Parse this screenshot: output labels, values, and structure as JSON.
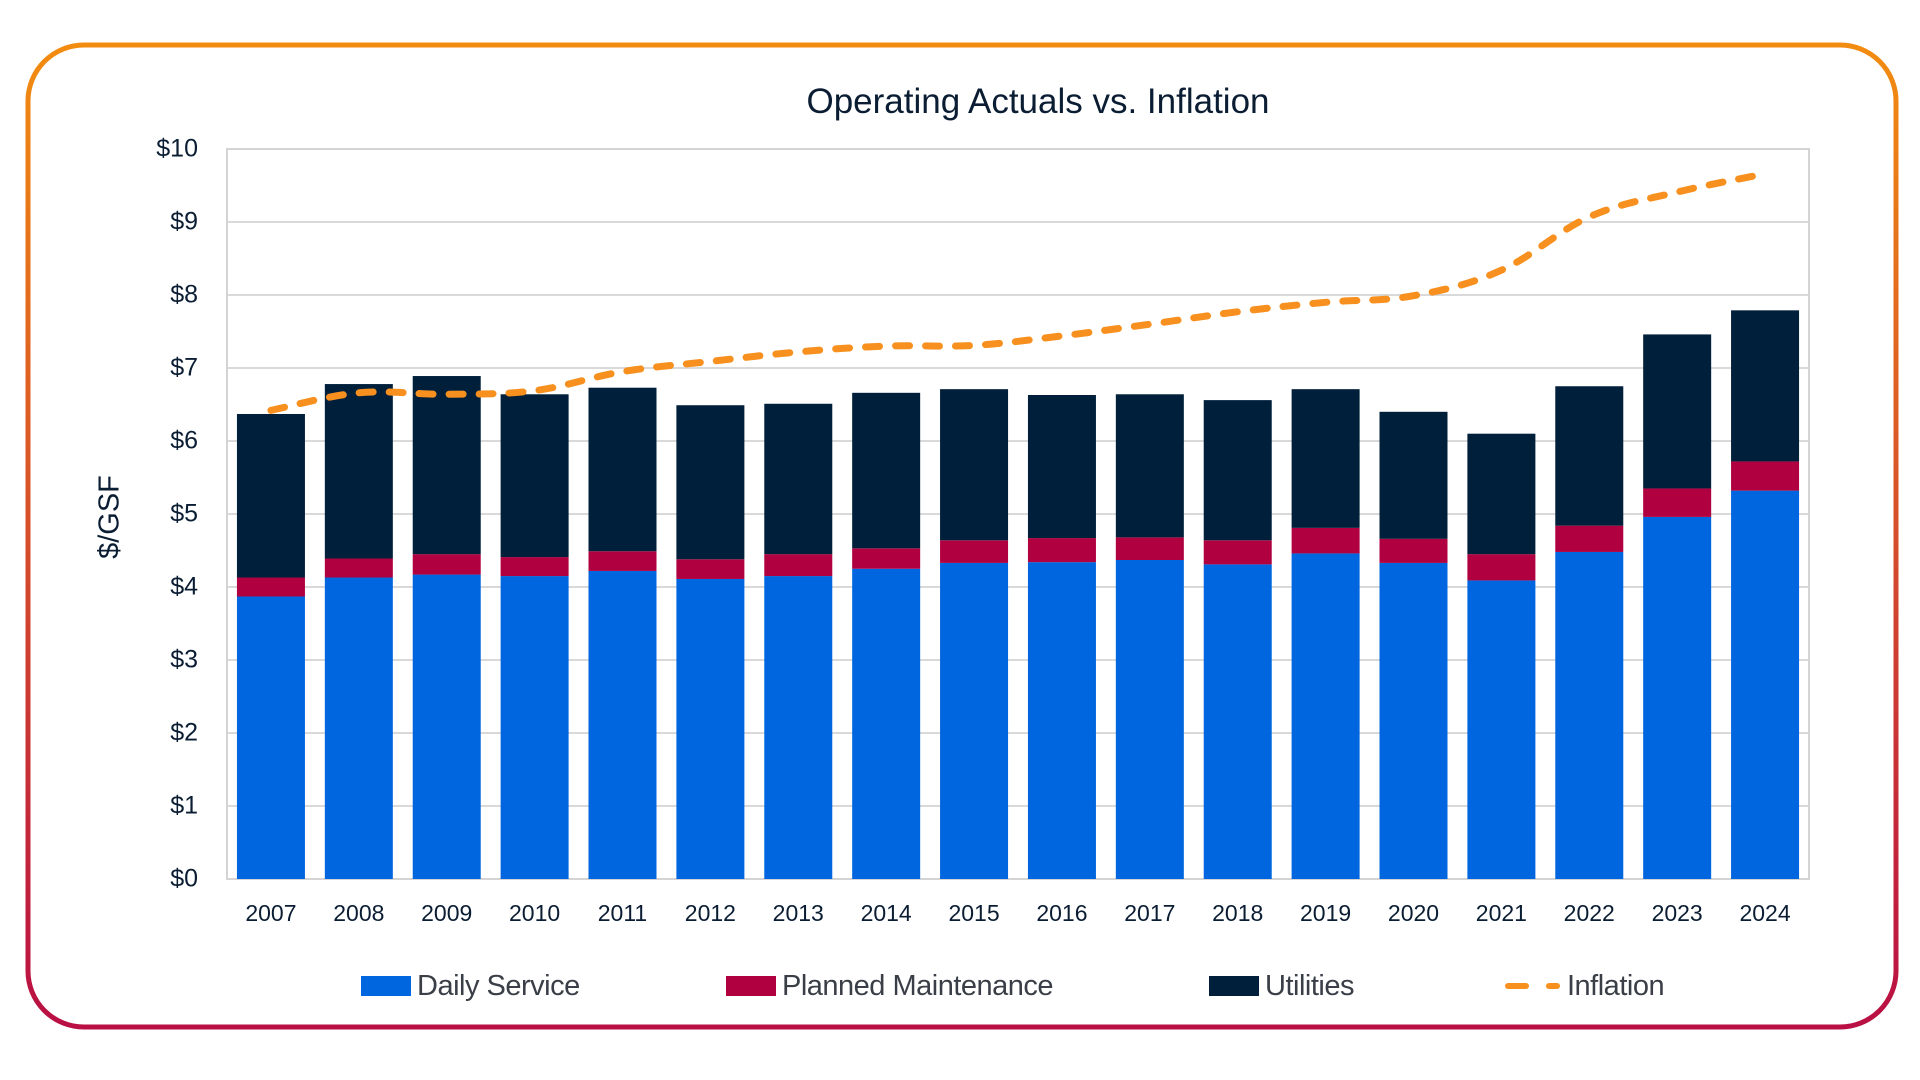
{
  "chart_data": {
    "type": "bar",
    "stacked": true,
    "title": "Operating Actuals vs. Inflation",
    "xlabel": "",
    "ylabel": "$/GSF",
    "ylim": [
      0,
      10
    ],
    "y_ticks": [
      "$0",
      "$1",
      "$2",
      "$3",
      "$4",
      "$5",
      "$6",
      "$7",
      "$8",
      "$9",
      "$10"
    ],
    "grid": true,
    "legend_position": "bottom",
    "categories": [
      "2007",
      "2008",
      "2009",
      "2010",
      "2011",
      "2012",
      "2013",
      "2014",
      "2015",
      "2016",
      "2017",
      "2018",
      "2019",
      "2020",
      "2021",
      "2022",
      "2023",
      "2024"
    ],
    "series": [
      {
        "name": "Daily Service",
        "type": "bar",
        "color": "#0066e0",
        "values": [
          3.87,
          4.13,
          4.17,
          4.15,
          4.22,
          4.11,
          4.15,
          4.25,
          4.33,
          4.34,
          4.37,
          4.31,
          4.46,
          4.33,
          4.09,
          4.48,
          4.96,
          5.32
        ]
      },
      {
        "name": "Planned Maintenance",
        "type": "bar",
        "color": "#b00040",
        "values": [
          0.26,
          0.26,
          0.28,
          0.26,
          0.27,
          0.27,
          0.3,
          0.28,
          0.31,
          0.33,
          0.31,
          0.33,
          0.35,
          0.33,
          0.36,
          0.36,
          0.39,
          0.4
        ]
      },
      {
        "name": "Utilities",
        "type": "bar",
        "color": "#001f3a",
        "values": [
          2.24,
          2.39,
          2.44,
          2.23,
          2.24,
          2.11,
          2.06,
          2.13,
          2.07,
          1.96,
          1.96,
          1.92,
          1.9,
          1.74,
          1.65,
          1.91,
          2.11,
          2.07
        ]
      },
      {
        "name": "Inflation",
        "type": "line",
        "style": "dashed",
        "color": "#f7901e",
        "values": [
          6.42,
          6.66,
          6.64,
          6.69,
          6.95,
          7.09,
          7.22,
          7.3,
          7.31,
          7.44,
          7.6,
          7.77,
          7.9,
          7.99,
          8.34,
          9.07,
          9.41,
          9.66
        ]
      }
    ]
  },
  "frame": {
    "border_top_color": "#f28c10",
    "border_bottom_color": "#b90f44"
  }
}
